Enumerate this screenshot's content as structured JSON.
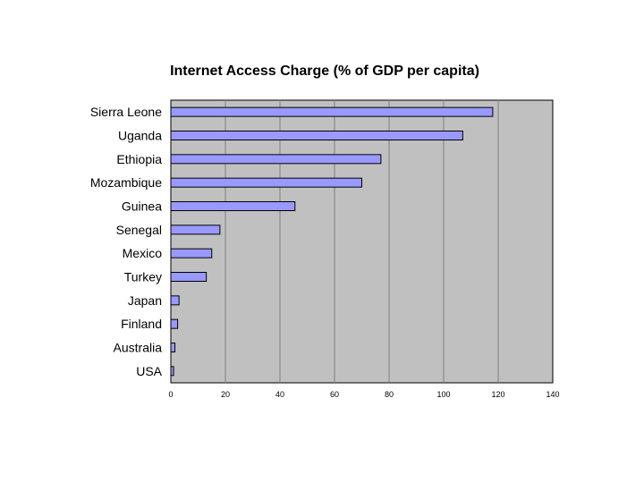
{
  "chart_data": {
    "type": "bar",
    "orientation": "horizontal",
    "title": "Internet Access Charge (% of GDP per capita)",
    "xlabel": "",
    "ylabel": "",
    "categories": [
      "Sierra Leone",
      "Uganda",
      "Ethiopia",
      "Mozambique",
      "Guinea",
      "Senegal",
      "Mexico",
      "Turkey",
      "Japan",
      "Finland",
      "Australia",
      "USA"
    ],
    "values": [
      118,
      107,
      77,
      70,
      45.5,
      18,
      15,
      13,
      3,
      2.5,
      1.5,
      1
    ],
    "xlim": [
      0,
      140
    ],
    "xticks": [
      "0",
      "20",
      "40",
      "60",
      "80",
      "100",
      "120",
      "140"
    ],
    "grid": "vertical",
    "legend": "none",
    "colors": {
      "bar_fill": "#9999ff",
      "bar_stroke": "#000000",
      "plot_background": "#c0c0c0",
      "grid": "#808080"
    }
  }
}
